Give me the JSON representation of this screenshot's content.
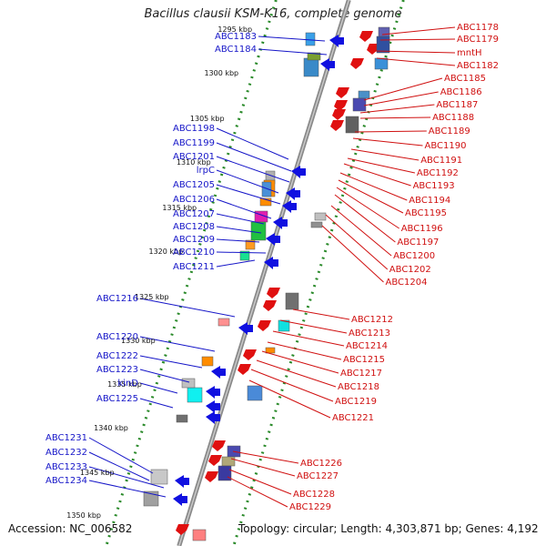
{
  "title": "Bacillus clausii KSM-K16, complete genome",
  "footer": {
    "accession": "Accession: NC_006582",
    "topology": "Topology: circular; Length: 4,303,871 bp; Genes: 4,192"
  },
  "ticks": [
    "1295 kbp",
    "1300 kbp",
    "1305 kbp",
    "1310 kbp",
    "1315 kbp",
    "1320 kbp",
    "1325 kbp",
    "1330 kbp",
    "1335 kbp",
    "1340 kbp",
    "1345 kbp",
    "1350 kbp"
  ],
  "left_labels": [
    "ABC1183",
    "ABC1184",
    "ABC1198",
    "ABC1199",
    "ABC1201",
    "lrpC",
    "ABC1205",
    "ABC1206",
    "ABC1207",
    "ABC1208",
    "ABC1209",
    "ABC1210",
    "ABC1211",
    "ABC1216",
    "ABC1220",
    "ABC1222",
    "ABC1223",
    "kinD",
    "ABC1225",
    "ABC1231",
    "ABC1232",
    "ABC1233",
    "ABC1234"
  ],
  "right_labels": [
    "ABC1178",
    "ABC1179",
    "mntH",
    "ABC1182",
    "ABC1185",
    "ABC1186",
    "ABC1187",
    "ABC1188",
    "ABC1189",
    "ABC1190",
    "ABC1191",
    "ABC1192",
    "ABC1193",
    "ABC1194",
    "ABC1195",
    "ABC1196",
    "ABC1197",
    "ABC1200",
    "ABC1202",
    "ABC1204",
    "ABC1212",
    "ABC1213",
    "ABC1214",
    "ABC1215",
    "ABC1217",
    "ABC1218",
    "ABC1219",
    "ABC1221",
    "ABC1226",
    "ABC1227",
    "ABC1228",
    "ABC1229"
  ],
  "colors": {
    "forward_strand": "#1010e0",
    "reverse_strand": "#e01010",
    "backbone": "#8a8a8a",
    "tick_dots": "#2a8a2a",
    "left_label": "#1515c8",
    "right_label": "#d01010"
  }
}
